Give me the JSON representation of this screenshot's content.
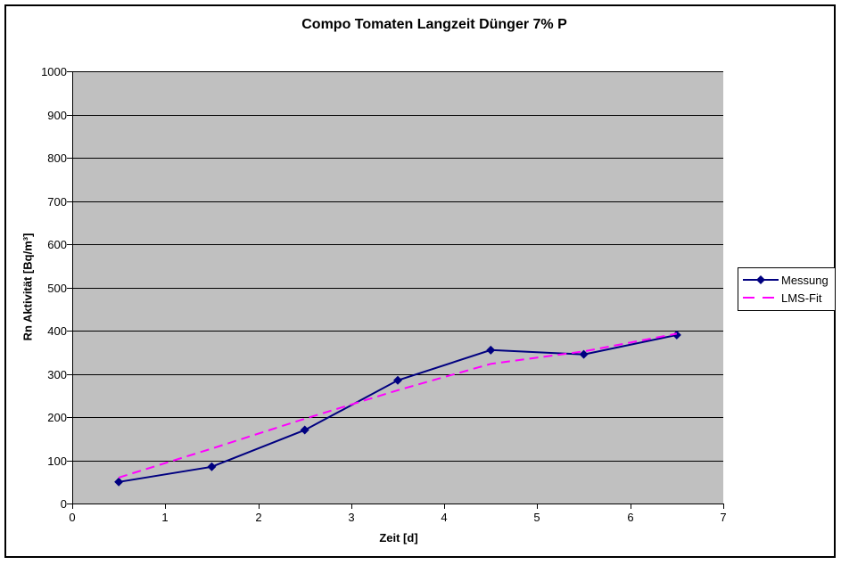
{
  "chart_data": {
    "type": "line",
    "title": "Compo Tomaten Langzeit Dünger 7% P",
    "xlabel": "Zeit [d]",
    "ylabel": "Rn Aktivität [Bq/m³]",
    "xlim": [
      0,
      7
    ],
    "ylim": [
      0,
      1000
    ],
    "x_ticks": [
      0,
      1,
      2,
      3,
      4,
      5,
      6,
      7
    ],
    "y_ticks": [
      0,
      100,
      200,
      300,
      400,
      500,
      600,
      700,
      800,
      900,
      1000
    ],
    "grid": "horizontal",
    "gridline_color": "#000000",
    "plot_background": "#C0C0C0",
    "legend_position": "right",
    "x": [
      0.5,
      1.5,
      2.5,
      3.5,
      4.5,
      5.5,
      6.5
    ],
    "series": [
      {
        "name": "Messung",
        "color": "#000080",
        "marker": "diamond",
        "line_style": "solid",
        "values": [
          50,
          85,
          170,
          285,
          355,
          345,
          390
        ]
      },
      {
        "name": "LMS-Fit",
        "color": "#FF00FF",
        "marker": "none",
        "line_style": "dashed",
        "values": [
          60,
          127,
          196,
          262,
          323,
          352,
          393
        ]
      }
    ]
  }
}
